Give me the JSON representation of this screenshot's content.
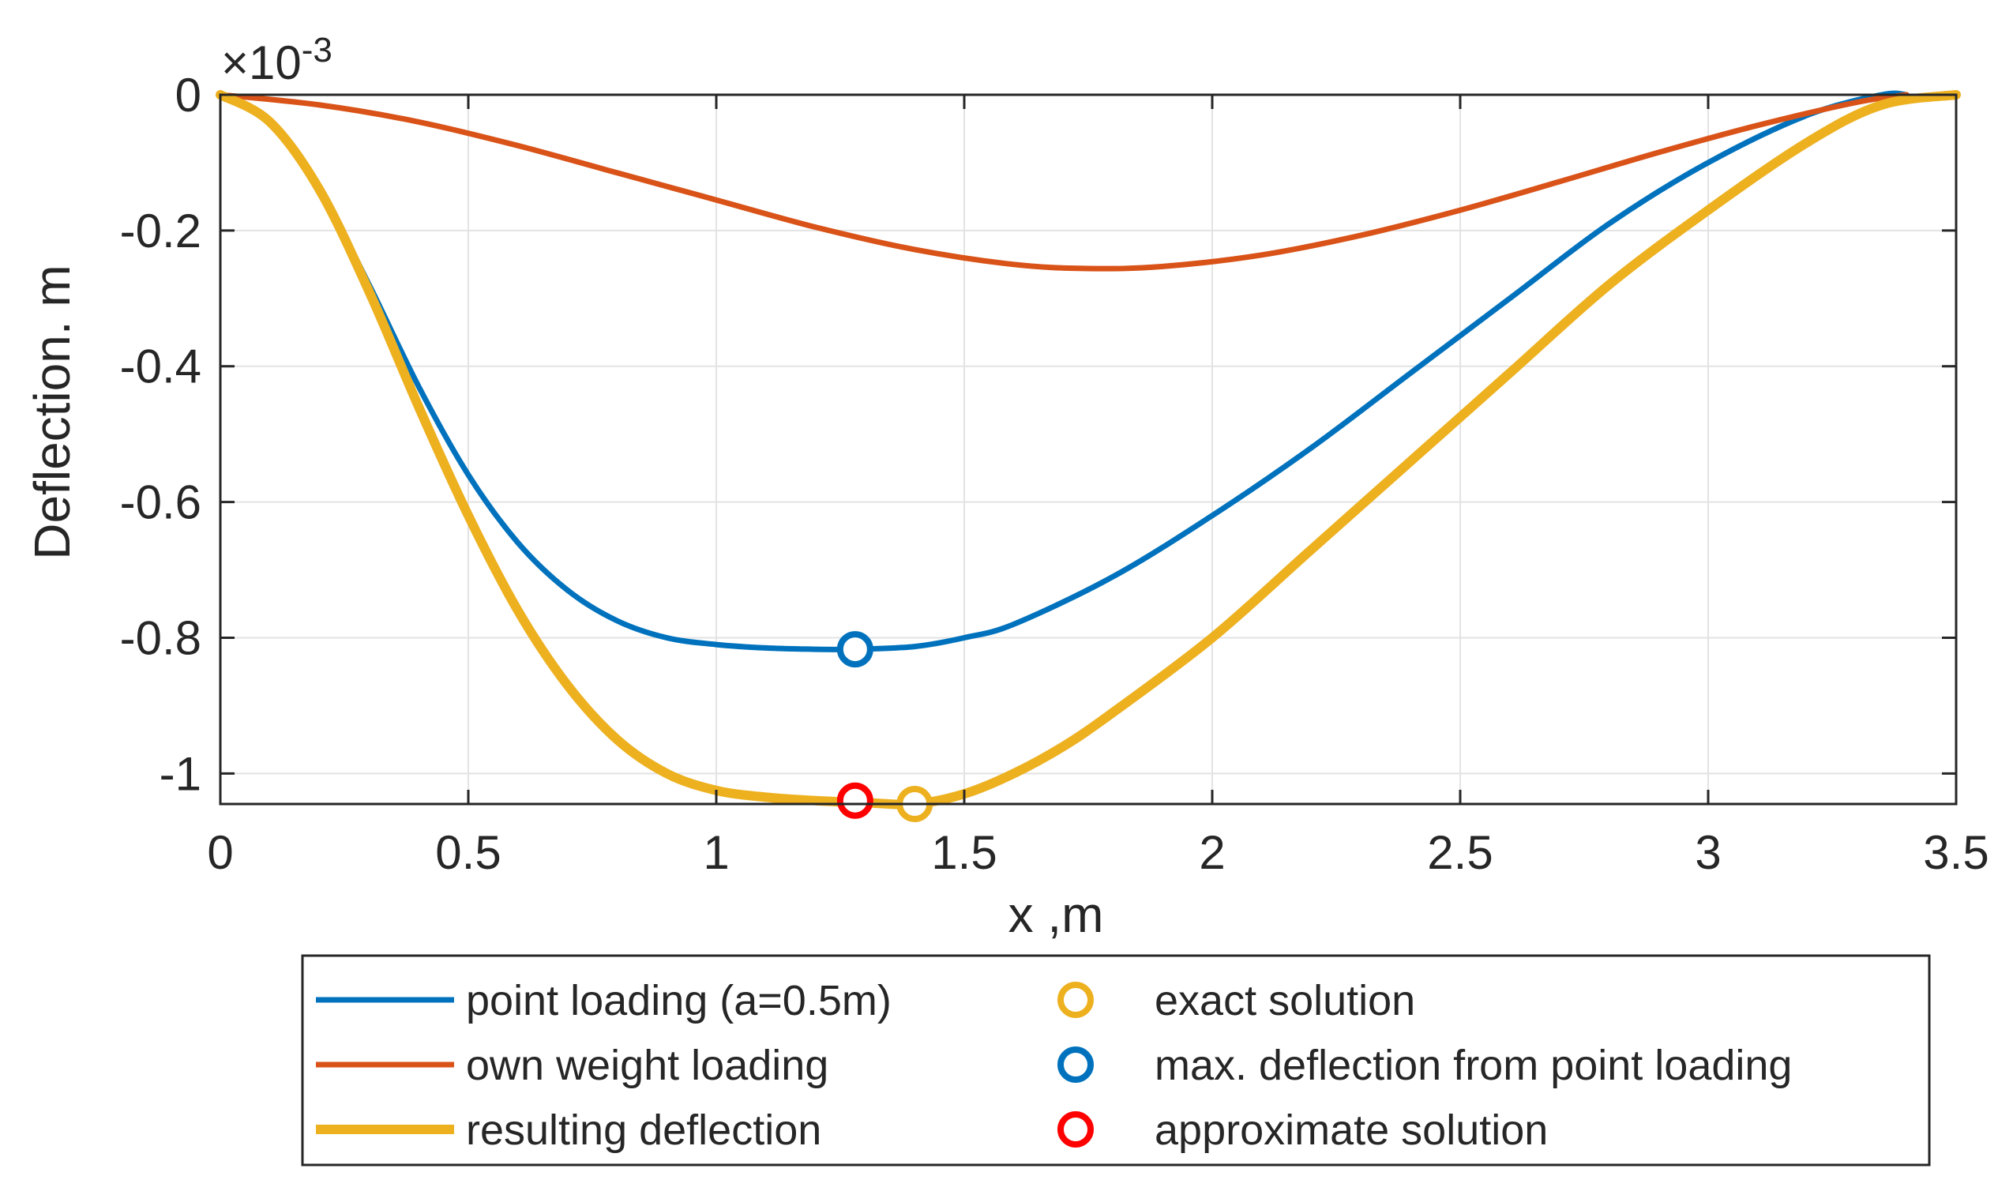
{
  "chart_data": {
    "type": "line",
    "title": "",
    "xlabel": "x ,m",
    "ylabel": "Deflection. m",
    "exponent_label": "×10",
    "exponent_power": "-3",
    "xlim": [
      0,
      3.5
    ],
    "ylim": [
      -1.045,
      0
    ],
    "grid": true,
    "x_ticks": [
      0,
      0.5,
      1,
      1.5,
      2,
      2.5,
      3,
      3.5
    ],
    "x_tick_labels": [
      "0",
      "0.5",
      "1",
      "1.5",
      "2",
      "2.5",
      "3",
      "3.5"
    ],
    "y_ticks": [
      0,
      -0.2,
      -0.4,
      -0.6,
      -0.8,
      -1
    ],
    "y_tick_labels": [
      "0",
      "-0.2",
      "-0.4",
      "-0.6",
      "-0.8",
      "-1"
    ],
    "series": [
      {
        "name": "point loading (a=0.5m)",
        "color": "#0072BD",
        "x": [
          0,
          0.1,
          0.2,
          0.3,
          0.4,
          0.5,
          0.6,
          0.7,
          0.8,
          0.9,
          1.0,
          1.1,
          1.2,
          1.28,
          1.4,
          1.5,
          1.6,
          1.8,
          2.0,
          2.2,
          2.4,
          2.6,
          2.8,
          3.0,
          3.2,
          3.35,
          3.4
        ],
        "values": [
          0,
          -0.04,
          -0.14,
          -0.28,
          -0.43,
          -0.56,
          -0.66,
          -0.73,
          -0.775,
          -0.8,
          -0.81,
          -0.815,
          -0.817,
          -0.817,
          -0.813,
          -0.8,
          -0.78,
          -0.71,
          -0.62,
          -0.52,
          -0.41,
          -0.3,
          -0.19,
          -0.1,
          -0.03,
          0,
          0
        ]
      },
      {
        "name": "own weight loading",
        "color": "#D95319",
        "x": [
          0,
          0.2,
          0.4,
          0.6,
          0.8,
          1.0,
          1.2,
          1.4,
          1.6,
          1.75,
          1.9,
          2.1,
          2.3,
          2.5,
          2.7,
          2.9,
          3.1,
          3.3,
          3.4
        ],
        "values": [
          0,
          -0.015,
          -0.04,
          -0.075,
          -0.115,
          -0.155,
          -0.195,
          -0.228,
          -0.25,
          -0.256,
          -0.253,
          -0.236,
          -0.207,
          -0.17,
          -0.128,
          -0.085,
          -0.045,
          -0.011,
          0
        ]
      },
      {
        "name": "resulting deflection",
        "color": "#EDB120",
        "x": [
          0,
          0.1,
          0.2,
          0.3,
          0.4,
          0.5,
          0.6,
          0.7,
          0.8,
          0.9,
          1.0,
          1.1,
          1.2,
          1.3,
          1.4,
          1.5,
          1.6,
          1.7,
          1.8,
          2.0,
          2.2,
          2.4,
          2.6,
          2.8,
          3.0,
          3.2,
          3.35,
          3.5
        ],
        "values": [
          0,
          -0.04,
          -0.14,
          -0.29,
          -0.46,
          -0.62,
          -0.76,
          -0.87,
          -0.95,
          -1.0,
          -1.025,
          -1.035,
          -1.04,
          -1.043,
          -1.045,
          -1.03,
          -1.0,
          -0.96,
          -0.91,
          -0.8,
          -0.67,
          -0.54,
          -0.41,
          -0.28,
          -0.17,
          -0.07,
          -0.015,
          0
        ]
      }
    ],
    "markers": [
      {
        "name": "exact solution",
        "color": "#EDB120",
        "x": 1.4,
        "y": -1.045
      },
      {
        "name": "max. deflection from point loading",
        "color": "#0072BD",
        "x": 1.28,
        "y": -0.817
      },
      {
        "name": "approximate solution",
        "color": "#FF0000",
        "x": 1.28,
        "y": -1.04
      }
    ]
  }
}
